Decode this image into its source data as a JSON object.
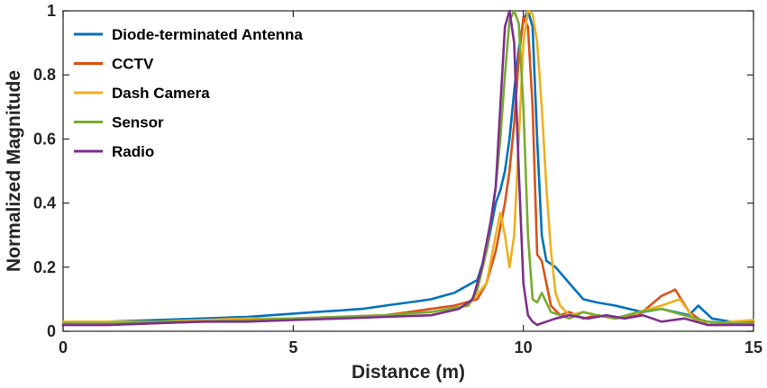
{
  "chart_data": {
    "type": "line",
    "title": "",
    "xlabel": "Distance (m)",
    "ylabel": "Normalized Magnitude",
    "xlim": [
      0,
      15
    ],
    "ylim": [
      0,
      1
    ],
    "xticks": [
      0,
      5,
      10,
      15
    ],
    "yticks": [
      0,
      0.2,
      0.4,
      0.6,
      0.8,
      1
    ],
    "ytick_labels": [
      "0",
      "0.2",
      "0.4",
      "0.6",
      "0.8",
      "1"
    ],
    "grid": false,
    "legend_position": "top-left",
    "series": [
      {
        "name": "Diode-terminated Antenna",
        "color": "#0072BD",
        "x": [
          0,
          1,
          2,
          3,
          4,
          5,
          5.5,
          6,
          6.5,
          7,
          7.5,
          8,
          8.5,
          9,
          9.2,
          9.4,
          9.5,
          9.6,
          9.7,
          9.8,
          9.9,
          10.0,
          10.1,
          10.2,
          10.3,
          10.4,
          10.5,
          10.7,
          11.0,
          11.3,
          11.6,
          12.0,
          12.3,
          12.6,
          13.0,
          13.3,
          13.6,
          13.8,
          14.1,
          14.5,
          15
        ],
        "y": [
          0.03,
          0.03,
          0.035,
          0.04,
          0.045,
          0.055,
          0.06,
          0.065,
          0.07,
          0.08,
          0.09,
          0.1,
          0.12,
          0.16,
          0.25,
          0.4,
          0.44,
          0.5,
          0.6,
          0.75,
          0.88,
          0.97,
          1.0,
          0.95,
          0.6,
          0.3,
          0.22,
          0.2,
          0.15,
          0.1,
          0.09,
          0.08,
          0.07,
          0.06,
          0.07,
          0.06,
          0.05,
          0.08,
          0.04,
          0.03,
          0.025
        ]
      },
      {
        "name": "CCTV",
        "color": "#D95319",
        "x": [
          0,
          1,
          2,
          3,
          4,
          5,
          6,
          7,
          7.5,
          8,
          8.5,
          9,
          9.2,
          9.4,
          9.6,
          9.7,
          9.8,
          9.9,
          10.0,
          10.1,
          10.2,
          10.3,
          10.4,
          10.5,
          10.6,
          10.8,
          11.0,
          11.3,
          11.6,
          12.0,
          12.5,
          13.0,
          13.3,
          13.6,
          14.0,
          14.5,
          15
        ],
        "y": [
          0.02,
          0.02,
          0.025,
          0.03,
          0.035,
          0.04,
          0.045,
          0.05,
          0.06,
          0.07,
          0.08,
          0.1,
          0.15,
          0.25,
          0.4,
          0.5,
          0.65,
          0.85,
          0.98,
          0.95,
          0.7,
          0.24,
          0.22,
          0.15,
          0.08,
          0.05,
          0.06,
          0.04,
          0.05,
          0.04,
          0.05,
          0.11,
          0.13,
          0.06,
          0.02,
          0.02,
          0.03
        ]
      },
      {
        "name": "Dash Camera",
        "color": "#EDB120",
        "x": [
          0,
          1,
          2,
          3,
          4,
          5,
          6,
          7,
          8,
          8.8,
          9.2,
          9.4,
          9.5,
          9.6,
          9.7,
          9.8,
          9.9,
          10.0,
          10.1,
          10.2,
          10.3,
          10.4,
          10.5,
          10.6,
          10.7,
          10.8,
          11.0,
          11.3,
          11.6,
          12.0,
          12.5,
          13.0,
          13.4,
          13.7,
          14.0,
          14.5,
          15
        ],
        "y": [
          0.03,
          0.03,
          0.03,
          0.035,
          0.04,
          0.04,
          0.045,
          0.05,
          0.06,
          0.08,
          0.15,
          0.3,
          0.37,
          0.3,
          0.2,
          0.3,
          0.6,
          0.9,
          1.0,
          0.99,
          0.9,
          0.7,
          0.45,
          0.25,
          0.12,
          0.08,
          0.05,
          0.06,
          0.05,
          0.04,
          0.06,
          0.08,
          0.1,
          0.04,
          0.02,
          0.03,
          0.035
        ]
      },
      {
        "name": "Sensor",
        "color": "#77AC30",
        "x": [
          0,
          1,
          2,
          3,
          4,
          5,
          6,
          7,
          8,
          8.8,
          9.0,
          9.2,
          9.4,
          9.5,
          9.6,
          9.7,
          9.8,
          9.9,
          10.0,
          10.1,
          10.2,
          10.3,
          10.4,
          10.6,
          10.8,
          11.0,
          11.3,
          11.6,
          12.0,
          12.5,
          13.0,
          13.5,
          14.0,
          14.5,
          15
        ],
        "y": [
          0.025,
          0.025,
          0.03,
          0.03,
          0.035,
          0.04,
          0.045,
          0.05,
          0.06,
          0.08,
          0.13,
          0.25,
          0.45,
          0.6,
          0.8,
          0.97,
          1.0,
          0.96,
          0.7,
          0.3,
          0.1,
          0.09,
          0.12,
          0.06,
          0.05,
          0.04,
          0.06,
          0.05,
          0.04,
          0.06,
          0.07,
          0.05,
          0.03,
          0.025,
          0.025
        ]
      },
      {
        "name": "Radio",
        "color": "#7E2F8E",
        "x": [
          0,
          1,
          2,
          3,
          4,
          5,
          6,
          7,
          8,
          8.6,
          8.9,
          9.1,
          9.3,
          9.4,
          9.5,
          9.6,
          9.7,
          9.8,
          9.9,
          10.0,
          10.1,
          10.2,
          10.3,
          10.5,
          10.7,
          11.0,
          11.4,
          11.8,
          12.2,
          12.6,
          13.0,
          13.5,
          14.0,
          14.5,
          15
        ],
        "y": [
          0.02,
          0.02,
          0.025,
          0.03,
          0.03,
          0.035,
          0.04,
          0.045,
          0.05,
          0.07,
          0.1,
          0.2,
          0.35,
          0.45,
          0.7,
          0.95,
          1.0,
          0.9,
          0.5,
          0.15,
          0.05,
          0.03,
          0.02,
          0.03,
          0.04,
          0.05,
          0.04,
          0.05,
          0.04,
          0.05,
          0.03,
          0.04,
          0.02,
          0.02,
          0.02
        ]
      }
    ]
  }
}
